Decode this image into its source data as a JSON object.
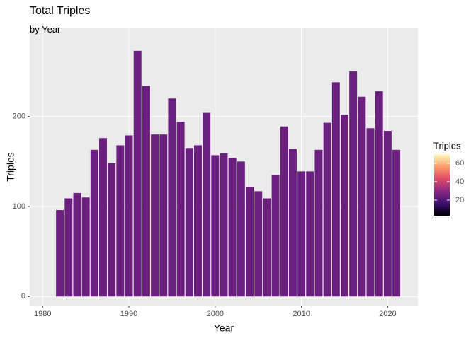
{
  "chart_data": {
    "type": "bar",
    "title": "Total Triples",
    "subtitle": "by Year",
    "x_label": "Year",
    "y_label": "Triples",
    "legend_title": "Triples",
    "x": [
      1982,
      1983,
      1984,
      1985,
      1986,
      1987,
      1988,
      1989,
      1990,
      1991,
      1992,
      1993,
      1994,
      1995,
      1996,
      1997,
      1998,
      1999,
      2000,
      2001,
      2002,
      2003,
      2004,
      2005,
      2006,
      2007,
      2008,
      2009,
      2010,
      2011,
      2012,
      2013,
      2014,
      2015,
      2016,
      2017,
      2018,
      2019,
      2020,
      2021
    ],
    "values": [
      96,
      109,
      115,
      110,
      163,
      176,
      148,
      168,
      179,
      273,
      234,
      180,
      180,
      220,
      194,
      165,
      168,
      204,
      157,
      159,
      154,
      150,
      122,
      117,
      109,
      135,
      189,
      164,
      139,
      139,
      163,
      193,
      238,
      202,
      250,
      222,
      187,
      228,
      184,
      163
    ],
    "color": "#6b1f7f",
    "xlim": [
      1978.5,
      2023.5
    ],
    "xticks": [
      1980,
      1990,
      2000,
      2010,
      2020
    ],
    "ylim": [
      -10,
      298
    ],
    "yticks": [
      0,
      100,
      200
    ],
    "fill_lim": [
      3,
      70
    ],
    "fill_ticks": [
      20,
      40,
      60
    ],
    "fill_colors": [
      "#000004",
      "#3b0f70",
      "#8c2981",
      "#de4968",
      "#fe9f6d",
      "#fcfdbf"
    ],
    "grid": true
  }
}
